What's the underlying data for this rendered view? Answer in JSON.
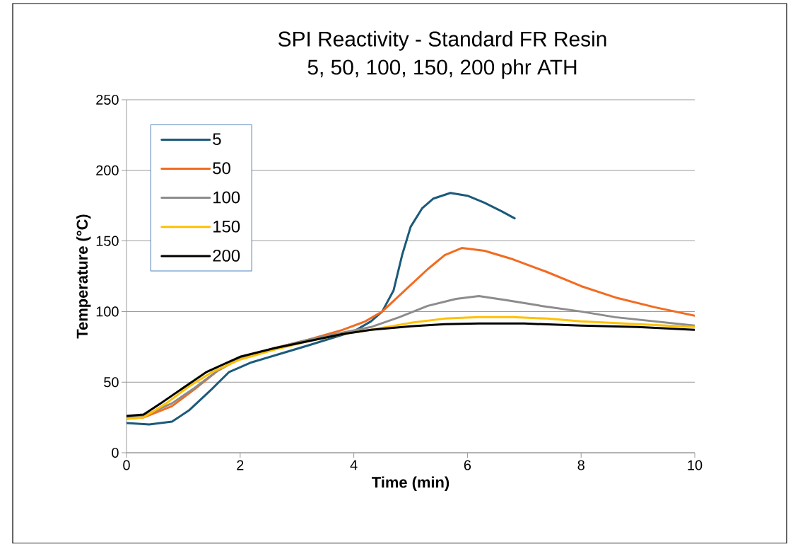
{
  "chart_data": {
    "type": "line",
    "title": "SPI Reactivity - Standard FR Resin",
    "subtitle": "5, 50, 100, 150, 200 phr ATH",
    "xlabel": "Time (min)",
    "ylabel": "Temperature (°C)",
    "xlim": [
      0,
      10
    ],
    "xticks": [
      0,
      2,
      4,
      6,
      8,
      10
    ],
    "ylim": [
      0,
      250
    ],
    "yticks": [
      0,
      50,
      100,
      150,
      200,
      250
    ],
    "grid": "y",
    "legend": "top left",
    "series": [
      {
        "name": "5",
        "color": "#1b5a7a",
        "x": [
          0,
          0.4,
          0.8,
          1.1,
          1.5,
          1.8,
          2.2,
          2.7,
          3.2,
          3.6,
          4.0,
          4.3,
          4.5,
          4.7,
          4.85,
          5.0,
          5.2,
          5.4,
          5.7,
          6.0,
          6.3,
          6.6,
          6.83
        ],
        "values": [
          21,
          20,
          22,
          30,
          45,
          57,
          64,
          70,
          76,
          81,
          86,
          93,
          100,
          115,
          140,
          160,
          173,
          180,
          184,
          182,
          177,
          171,
          166
        ]
      },
      {
        "name": "50",
        "color": "#f26b21",
        "x": [
          0,
          0.3,
          0.8,
          1.2,
          1.6,
          2.0,
          2.6,
          3.2,
          3.8,
          4.2,
          4.5,
          4.9,
          5.3,
          5.6,
          5.9,
          6.3,
          6.8,
          7.4,
          8.0,
          8.6,
          9.3,
          10
        ],
        "values": [
          24,
          25,
          33,
          45,
          58,
          67,
          74,
          80,
          87,
          93,
          100,
          115,
          130,
          140,
          145,
          143,
          137,
          128,
          118,
          110,
          103,
          97
        ]
      },
      {
        "name": "100",
        "color": "#8c8c8c",
        "x": [
          0,
          0.3,
          0.8,
          1.2,
          1.6,
          2.0,
          2.6,
          3.2,
          3.8,
          4.3,
          4.8,
          5.3,
          5.8,
          6.2,
          6.7,
          7.3,
          8.0,
          8.6,
          9.3,
          10
        ],
        "values": [
          25,
          26,
          35,
          46,
          58,
          67,
          74,
          80,
          85,
          89,
          96,
          104,
          109,
          111,
          108,
          104,
          100,
          96,
          93,
          90
        ]
      },
      {
        "name": "150",
        "color": "#ffc000",
        "x": [
          0,
          0.3,
          0.7,
          1.1,
          1.5,
          2.0,
          2.6,
          3.2,
          3.8,
          4.3,
          5.0,
          5.6,
          6.2,
          6.8,
          7.4,
          8.0,
          9.0,
          10
        ],
        "values": [
          24,
          25,
          35,
          47,
          57,
          66,
          73,
          79,
          84,
          87,
          92,
          95,
          96,
          96,
          95,
          93,
          91,
          89
        ]
      },
      {
        "name": "200",
        "color": "#000000",
        "x": [
          0,
          0.3,
          0.6,
          1.0,
          1.4,
          2.0,
          2.6,
          3.2,
          3.8,
          4.3,
          5.0,
          5.6,
          6.2,
          7.0,
          8.0,
          9.0,
          10
        ],
        "values": [
          26,
          27,
          35,
          46,
          57,
          68,
          74,
          79,
          84,
          87,
          89.5,
          91,
          91.5,
          91.5,
          90,
          89,
          87
        ]
      }
    ]
  }
}
